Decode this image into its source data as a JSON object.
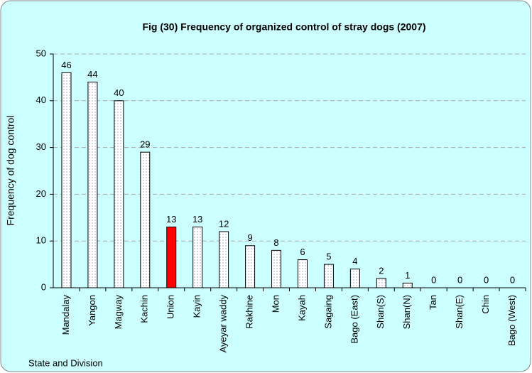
{
  "chart_data": {
    "type": "bar",
    "title": "Fig (30) Frequency of organized control of stray dogs (2007)",
    "x_label": "State and Division",
    "y_label": "Frequency of dog control",
    "categories": [
      "Mandalay",
      "Yangon",
      "Magway",
      "Kachin",
      "Union",
      "Kayin",
      "Ayeyar waddy",
      "Rakhine",
      "Mon",
      "Kayah",
      "Sagaing",
      "Bago (East)",
      "Shan(S)",
      "Shan(N)",
      "Tan",
      "Shan(E)",
      "Chin",
      "Bago (West)"
    ],
    "values": [
      46,
      44,
      40,
      29,
      13,
      13,
      12,
      9,
      8,
      6,
      5,
      4,
      2,
      1,
      0,
      0,
      0,
      0
    ],
    "colors": [
      "url(#dots)",
      "url(#dots)",
      "url(#dots)",
      "url(#dots)",
      "#ff0000",
      "url(#dots)",
      "url(#dots)",
      "url(#dots)",
      "url(#dots)",
      "url(#dots)",
      "url(#dots)",
      "url(#dots)",
      "url(#dots)",
      "url(#dots)",
      "url(#dots)",
      "url(#dots)",
      "url(#dots)",
      "url(#dots)"
    ],
    "ylim": [
      0,
      50
    ],
    "yticks": [
      0,
      10,
      20,
      30,
      40,
      50
    ],
    "grid": true
  }
}
